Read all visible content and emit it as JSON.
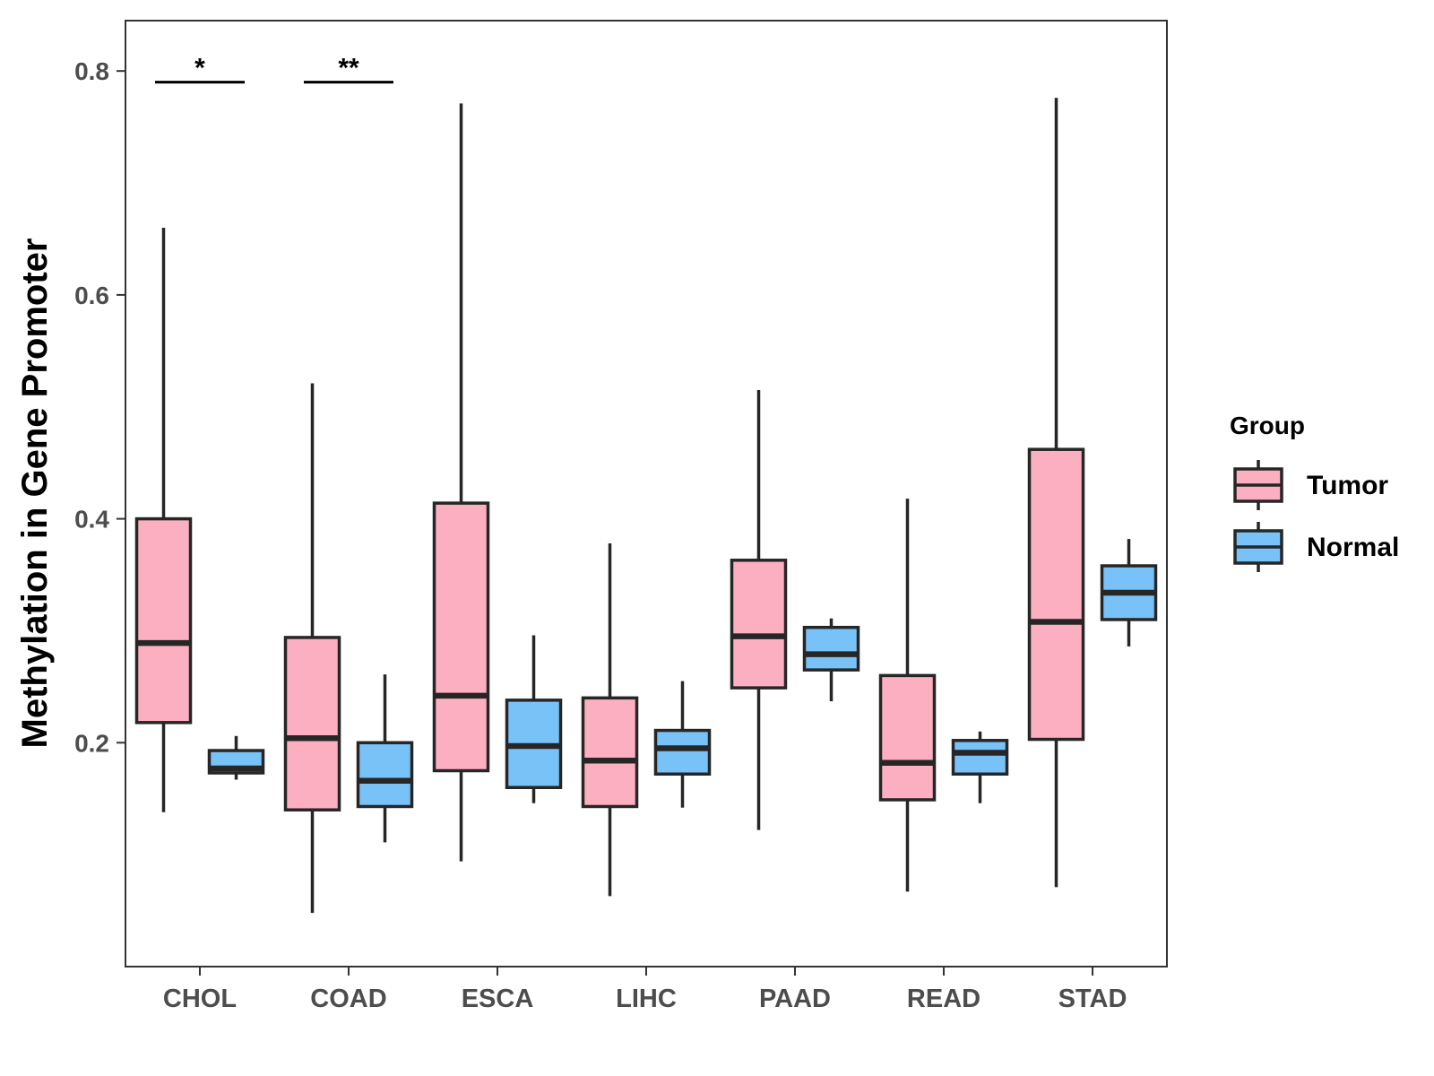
{
  "chart_data": {
    "type": "boxplot",
    "title": "",
    "xlabel": "",
    "ylabel": "Methylation in Gene Promoter",
    "ylim": [
      0.0,
      0.845
    ],
    "yticks": [
      0.2,
      0.4,
      0.6,
      0.8
    ],
    "ytick_labels": [
      "0.2",
      "0.4",
      "0.6",
      "0.8"
    ],
    "categories": [
      "CHOL",
      "COAD",
      "ESCA",
      "LIHC",
      "PAAD",
      "READ",
      "STAD"
    ],
    "legend": {
      "title": "Group",
      "position": "right",
      "entries": [
        "Tumor",
        "Normal"
      ]
    },
    "colors": {
      "Tumor": "#fcafc1",
      "Normal": "#78c2f8",
      "outline": "#262626",
      "axis": "#333333"
    },
    "series": [
      {
        "name": "Tumor",
        "boxes": [
          {
            "min": 0.138,
            "q1": 0.218,
            "median": 0.289,
            "q3": 0.4,
            "max": 0.66
          },
          {
            "min": 0.048,
            "q1": 0.14,
            "median": 0.204,
            "q3": 0.294,
            "max": 0.521
          },
          {
            "min": 0.094,
            "q1": 0.175,
            "median": 0.242,
            "q3": 0.414,
            "max": 0.771
          },
          {
            "min": 0.063,
            "q1": 0.143,
            "median": 0.184,
            "q3": 0.24,
            "max": 0.378
          },
          {
            "min": 0.122,
            "q1": 0.249,
            "median": 0.295,
            "q3": 0.363,
            "max": 0.515
          },
          {
            "min": 0.067,
            "q1": 0.149,
            "median": 0.182,
            "q3": 0.26,
            "max": 0.418
          },
          {
            "min": 0.071,
            "q1": 0.203,
            "median": 0.308,
            "q3": 0.462,
            "max": 0.776
          }
        ]
      },
      {
        "name": "Normal",
        "boxes": [
          {
            "min": 0.167,
            "q1": 0.173,
            "median": 0.177,
            "q3": 0.193,
            "max": 0.206
          },
          {
            "min": 0.111,
            "q1": 0.143,
            "median": 0.166,
            "q3": 0.2,
            "max": 0.261
          },
          {
            "min": 0.146,
            "q1": 0.16,
            "median": 0.197,
            "q3": 0.238,
            "max": 0.296
          },
          {
            "min": 0.142,
            "q1": 0.172,
            "median": 0.195,
            "q3": 0.211,
            "max": 0.255
          },
          {
            "min": 0.237,
            "q1": 0.265,
            "median": 0.279,
            "q3": 0.303,
            "max": 0.311
          },
          {
            "min": 0.146,
            "q1": 0.172,
            "median": 0.191,
            "q3": 0.202,
            "max": 0.21
          },
          {
            "min": 0.286,
            "q1": 0.31,
            "median": 0.334,
            "q3": 0.358,
            "max": 0.382
          }
        ]
      }
    ],
    "annotations": [
      {
        "category": "CHOL",
        "text": "*",
        "y": 0.79
      },
      {
        "category": "COAD",
        "text": "**",
        "y": 0.79
      }
    ]
  }
}
